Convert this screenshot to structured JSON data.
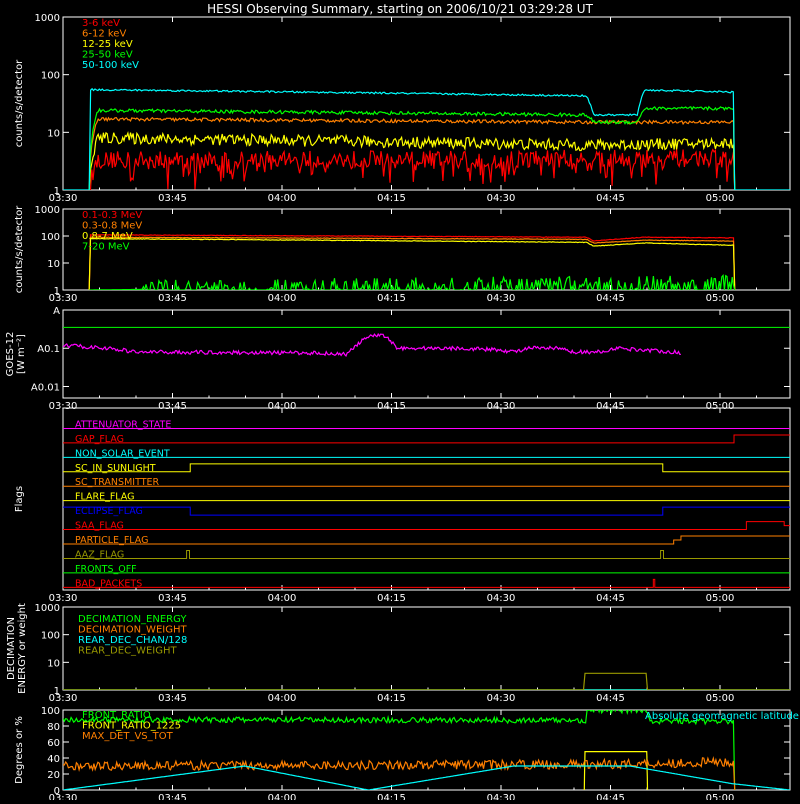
{
  "title": "HESSI Observing Summary, starting on 2006/10/21 03:29:28 UT",
  "time_ticks": [
    "03:30",
    "03:45",
    "04:00",
    "04:15",
    "04:30",
    "04:45",
    "05:00"
  ],
  "colors": {
    "axis": "#ffffff",
    "red": "#ff0000",
    "orange": "#ff8000",
    "yellow": "#ffff00",
    "green": "#00ff00",
    "cyan": "#00ffff",
    "magenta": "#ff00ff",
    "blue": "#0000ff",
    "olive": "#999900"
  },
  "chart_data": [
    {
      "type": "line",
      "title": "HESSI Observing Summary, starting on 2006/10/21 03:29:28 UT",
      "ylabel": "counts/s/detector",
      "yscale": "log",
      "ylim": [
        1,
        1000
      ],
      "y_ticks": [
        "1",
        "10",
        "100",
        "1000"
      ],
      "x_ticks": [
        "03:30",
        "03:45",
        "04:00",
        "04:15",
        "04:30",
        "04:45",
        "05:00"
      ],
      "series": [
        {
          "name": "3-6 keV",
          "color": "#ff0000",
          "points": [
            [
              3.6,
              1
            ],
            [
              4.8,
              3.3
            ],
            [
              92.3,
              3.6
            ],
            [
              92.4,
              1
            ]
          ],
          "noise": 0.15,
          "spiky": true
        },
        {
          "name": "6-12 keV",
          "color": "#ff8000",
          "points": [
            [
              3.6,
              1
            ],
            [
              4.8,
              17
            ],
            [
              72,
              15
            ],
            [
              73,
              15
            ],
            [
              92.3,
              15
            ],
            [
              92.4,
              1
            ]
          ],
          "noise": 0.03,
          "spiky": false
        },
        {
          "name": "12-25 keV",
          "color": "#ffff00",
          "points": [
            [
              3.6,
              1
            ],
            [
              4.8,
              8
            ],
            [
              72,
              6
            ],
            [
              92.3,
              6.5
            ],
            [
              92.4,
              1
            ]
          ],
          "noise": 0.1,
          "spiky": false
        },
        {
          "name": "25-50 keV",
          "color": "#00ff00",
          "points": [
            [
              3.6,
              1
            ],
            [
              4.8,
              24
            ],
            [
              72,
              20
            ],
            [
              73,
              15
            ],
            [
              79,
              15
            ],
            [
              80,
              26
            ],
            [
              92.3,
              26
            ],
            [
              92.4,
              1
            ]
          ],
          "noise": 0.03,
          "spiky": false
        },
        {
          "name": "50-100 keV",
          "color": "#00ffff",
          "points": [
            [
              0,
              1
            ],
            [
              3.6,
              1
            ],
            [
              3.7,
              55
            ],
            [
              72,
              43
            ],
            [
              73,
              20
            ],
            [
              79,
              20
            ],
            [
              80,
              54
            ],
            [
              92.3,
              50
            ],
            [
              92.4,
              1
            ],
            [
              100,
              1
            ]
          ],
          "noise": 0.015,
          "spiky": false
        }
      ]
    },
    {
      "type": "line",
      "ylabel": "counts/s/detector",
      "yscale": "log",
      "ylim": [
        1,
        1000
      ],
      "y_ticks": [
        "1",
        "10",
        "100",
        "1000"
      ],
      "x_ticks": [
        "03:30",
        "03:45",
        "04:00",
        "04:15",
        "04:30",
        "04:45",
        "05:00"
      ],
      "series": [
        {
          "name": "0.1-0.3 MeV",
          "color": "#ff0000",
          "points": [
            [
              3.6,
              1
            ],
            [
              3.7,
              110
            ],
            [
              72,
              90
            ],
            [
              73,
              65
            ],
            [
              80,
              90
            ],
            [
              92.3,
              85
            ],
            [
              92.4,
              1
            ]
          ],
          "noise": 0.01,
          "spiky": false
        },
        {
          "name": "0.3-0.8 MeV",
          "color": "#ff8000",
          "points": [
            [
              3.6,
              1
            ],
            [
              3.7,
              90
            ],
            [
              72,
              75
            ],
            [
              73,
              55
            ],
            [
              80,
              70
            ],
            [
              92.3,
              65
            ],
            [
              92.4,
              1
            ]
          ],
          "noise": 0.01,
          "spiky": false
        },
        {
          "name": "0.8-7 MeV",
          "color": "#ffff00",
          "points": [
            [
              3.6,
              1
            ],
            [
              3.7,
              80
            ],
            [
              72,
              58
            ],
            [
              73,
              42
            ],
            [
              80,
              55
            ],
            [
              92.3,
              45
            ],
            [
              92.4,
              1
            ]
          ],
          "noise": 0.01,
          "spiky": false
        },
        {
          "name": "7-20 MeV",
          "color": "#00ff00",
          "points": [
            [
              3.6,
              1
            ],
            [
              92.3,
              1.6
            ],
            [
              92.4,
              1
            ]
          ],
          "noise": 0.35,
          "spiky": true
        }
      ]
    },
    {
      "type": "line",
      "ylabel": "GOES-12",
      "yunit": "[W m⁻²]",
      "yscale": "log",
      "ylim": [
        0.005,
        1
      ],
      "y_ticks": [
        "A0.01",
        "A0.1",
        "A"
      ],
      "x_ticks": [
        "03:30",
        "03:45",
        "04:00",
        "04:15",
        "04:30",
        "04:45",
        "05:00"
      ],
      "reference_level": 0.35,
      "series": [
        {
          "name": "GOES",
          "color": "#ff00ff",
          "points": [
            [
              0,
              0.12
            ],
            [
              6,
              0.1
            ],
            [
              10,
              0.08
            ],
            [
              35,
              0.075
            ],
            [
              39,
              0.07
            ],
            [
              40,
              0.1
            ],
            [
              42,
              0.2
            ],
            [
              44,
              0.22
            ],
            [
              46,
              0.1
            ],
            [
              55,
              0.1
            ],
            [
              60,
              0.09
            ],
            [
              62,
              0.08
            ],
            [
              64,
              0.1
            ],
            [
              68,
              0.1
            ],
            [
              70,
              0.08
            ],
            [
              74,
              0.08
            ],
            [
              76,
              0.1
            ],
            [
              80,
              0.09
            ],
            [
              84,
              0.08
            ],
            [
              85,
              0.07
            ]
          ],
          "noise": 0.05,
          "spiky": false
        }
      ]
    },
    {
      "type": "line",
      "ylabel": "Flags",
      "x_ticks": [
        "03:30",
        "03:45",
        "04:00",
        "04:15",
        "04:30",
        "04:45",
        "05:00"
      ],
      "series": [
        {
          "name": "ATTENUATOR_STATE",
          "color": "#ff00ff",
          "steps": [
            [
              0,
              0
            ]
          ]
        },
        {
          "name": "GAP_FLAG",
          "color": "#ff0000",
          "steps": [
            [
              0,
              0
            ],
            [
              92.3,
              1
            ]
          ]
        },
        {
          "name": "NON_SOLAR_EVENT",
          "color": "#00ffff",
          "steps": [
            [
              0,
              0
            ]
          ]
        },
        {
          "name": "SC_IN_SUNLIGHT",
          "color": "#ffff00",
          "steps": [
            [
              0,
              0
            ],
            [
              17.5,
              1
            ],
            [
              82.5,
              0
            ]
          ]
        },
        {
          "name": "SC_TRANSMITTER",
          "color": "#ff8000",
          "steps": [
            [
              0,
              0
            ]
          ]
        },
        {
          "name": "FLARE_FLAG",
          "color": "#ffff00",
          "steps": [
            [
              0,
              0
            ]
          ]
        },
        {
          "name": "ECLIPSE_FLAG",
          "color": "#0000ff",
          "steps": [
            [
              0,
              1
            ],
            [
              17.5,
              0
            ],
            [
              82.5,
              1
            ]
          ]
        },
        {
          "name": "SAA_FLAG",
          "color": "#ff0000",
          "steps": [
            [
              0,
              0
            ],
            [
              94,
              1
            ],
            [
              99.2,
              0.5
            ]
          ]
        },
        {
          "name": "PARTICLE_FLAG",
          "color": "#ff8000",
          "steps": [
            [
              0,
              0
            ],
            [
              84,
              0.5
            ],
            [
              85,
              1
            ]
          ]
        },
        {
          "name": "AAZ_FLAG",
          "color": "#999900",
          "steps": [
            [
              0,
              0
            ],
            [
              17,
              1
            ],
            [
              17.4,
              0
            ],
            [
              82.2,
              1
            ],
            [
              82.6,
              0
            ]
          ]
        },
        {
          "name": "FRONTS_OFF",
          "color": "#00ff00",
          "steps": [
            [
              0,
              0
            ]
          ]
        },
        {
          "name": "BAD_PACKETS",
          "color": "#ff0000",
          "steps": [
            [
              0,
              0
            ],
            [
              81.2,
              1
            ],
            [
              81.4,
              0
            ]
          ]
        }
      ]
    },
    {
      "type": "line",
      "ylabel": "DECIMATION ENERGY or weight",
      "yscale": "log",
      "ylim": [
        1,
        1000
      ],
      "y_ticks": [
        "1",
        "10",
        "100",
        "1000"
      ],
      "x_ticks": [
        "03:30",
        "03:45",
        "04:00",
        "04:15",
        "04:30",
        "04:45",
        "05:00"
      ],
      "series": [
        {
          "name": "DECIMATION_ENERGY",
          "color": "#00ff00",
          "points": [
            [
              0,
              1
            ],
            [
              100,
              1
            ]
          ]
        },
        {
          "name": "DECIMATION_WEIGHT",
          "color": "#ff8000",
          "points": [
            [
              0,
              1
            ],
            [
              100,
              1
            ]
          ]
        },
        {
          "name": "REAR_DEC_CHAN/128",
          "color": "#00ffff",
          "points": [
            [
              0,
              1
            ],
            [
              100,
              1
            ]
          ]
        },
        {
          "name": "REAR_DEC_WEIGHT",
          "color": "#999900",
          "points": [
            [
              0,
              1
            ],
            [
              71.7,
              1
            ],
            [
              71.8,
              4
            ],
            [
              80.2,
              4
            ],
            [
              80.3,
              1
            ],
            [
              100,
              1
            ]
          ]
        }
      ]
    },
    {
      "type": "line",
      "ylabel": "Degrees or %",
      "ylim": [
        0,
        100
      ],
      "y_ticks": [
        "0",
        "20",
        "40",
        "60",
        "80",
        "100"
      ],
      "x_ticks": [
        "03:30",
        "03:45",
        "04:00",
        "04:15",
        "04:30",
        "04:45",
        "05:00"
      ],
      "annotation": "Absolute geomagnetic latitude",
      "series": [
        {
          "name": "FRONT_RATIO",
          "color": "#00ff00",
          "points": [
            [
              0,
              88
            ],
            [
              72,
              87
            ],
            [
              72.1,
              100
            ],
            [
              80.5,
              100
            ],
            [
              80.6,
              86
            ],
            [
              92.3,
              86
            ],
            [
              92.4,
              0
            ]
          ],
          "noise": 0.04,
          "spiky": false
        },
        {
          "name": "FRONT_RATIO_1225",
          "color": "#ffff00",
          "points": [
            [
              71.7,
              0
            ],
            [
              71.8,
              48
            ],
            [
              80.3,
              48
            ],
            [
              80.4,
              0
            ]
          ],
          "noise": 0.0,
          "spiky": false
        },
        {
          "name": "MAX_DET_VS_TOT",
          "color": "#ff8000",
          "points": [
            [
              0,
              30
            ],
            [
              72,
              32
            ],
            [
              92.3,
              35
            ],
            [
              92.4,
              0
            ]
          ],
          "noise": 0.18,
          "spiky": false
        },
        {
          "name": "Absolute geomagnetic latitude",
          "color": "#00ffff",
          "points": [
            [
              0,
              0
            ],
            [
              25,
              30
            ],
            [
              42,
              0
            ],
            [
              62,
              30
            ],
            [
              78,
              30
            ],
            [
              92,
              8
            ],
            [
              100,
              0
            ]
          ],
          "noise": 0.0,
          "spiky": false
        }
      ]
    }
  ]
}
